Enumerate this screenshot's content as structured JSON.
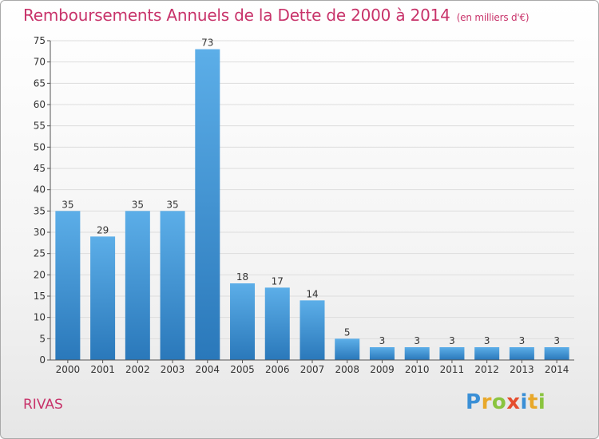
{
  "header": {
    "title": "Remboursements Annuels de la Dette de 2000 à 2014",
    "subtitle": "(en milliers d'€)"
  },
  "footer": {
    "commune": "RIVAS",
    "logo_text": "Proxiti"
  },
  "colors": {
    "title": "#c8336a",
    "bar_top": "#5caee8",
    "bar_bottom": "#2a78ba",
    "grid": "#dddddd",
    "axis": "#555555"
  },
  "chart_data": {
    "type": "bar",
    "title": "Remboursements Annuels de la Dette de 2000 à 2014",
    "subtitle": "(en milliers d'€)",
    "xlabel": "",
    "ylabel": "",
    "categories": [
      "2000",
      "2001",
      "2002",
      "2003",
      "2004",
      "2005",
      "2006",
      "2007",
      "2008",
      "2009",
      "2010",
      "2011",
      "2012",
      "2013",
      "2014"
    ],
    "values": [
      35,
      29,
      35,
      35,
      73,
      18,
      17,
      14,
      5,
      3,
      3,
      3,
      3,
      3,
      3
    ],
    "ylim": [
      0,
      75
    ],
    "yticks": [
      0,
      5,
      10,
      15,
      20,
      25,
      30,
      35,
      40,
      45,
      50,
      55,
      60,
      65,
      70,
      75
    ],
    "grid": true,
    "data_labels": true
  }
}
